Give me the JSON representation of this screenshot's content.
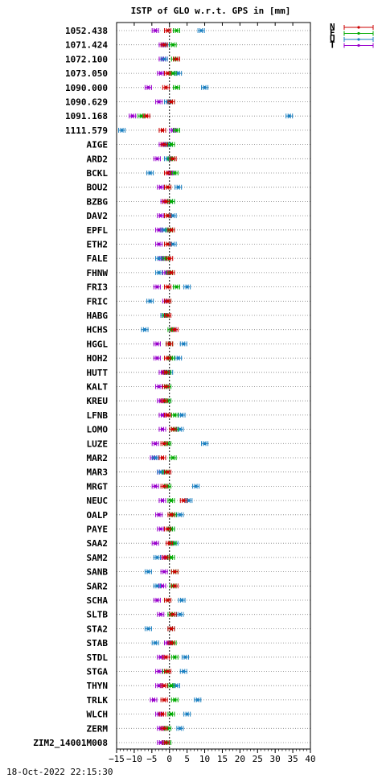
{
  "chart_data": {
    "type": "scatter",
    "title": "ISTP of GLO w.r.t. GPS in [mm]",
    "xlim": [
      -15,
      40
    ],
    "x_ticks": [
      -15,
      -10,
      -5,
      0,
      5,
      10,
      15,
      20,
      25,
      30,
      35,
      40
    ],
    "x_tick_labels": [
      "−15",
      "−10",
      "−5",
      "0",
      "5",
      "10",
      "15",
      "20",
      "25",
      "30",
      "35",
      "40"
    ],
    "grid": true,
    "legend_position": "top-right",
    "series": [
      {
        "name": "N",
        "color": "#cc0000"
      },
      {
        "name": "E",
        "color": "#00aa00"
      },
      {
        "name": "U",
        "color": "#1a7fc0"
      },
      {
        "name": "T",
        "color": "#9900cc"
      }
    ],
    "stations": [
      {
        "label": "1052.438",
        "N": -0.5,
        "E": 2.0,
        "U": 9.0,
        "T": -4.0
      },
      {
        "label": "1071.424",
        "N": -1.5,
        "E": 1.0,
        "U": -1.0,
        "T": -2.0
      },
      {
        "label": "1072.100",
        "N": 2.0,
        "E": 1.5,
        "U": -1.5,
        "T": -2.0
      },
      {
        "label": "1073.050",
        "N": -0.5,
        "E": 1.0,
        "U": 2.5,
        "T": -2.5
      },
      {
        "label": "1090.000",
        "N": -1.0,
        "E": 2.0,
        "U": 10.0,
        "T": -6.0
      },
      {
        "label": "1090.629",
        "N": 0.5,
        "E": 0.5,
        "U": -0.5,
        "T": -3.0
      },
      {
        "label": "1091.168",
        "N": -6.5,
        "E": -8.0,
        "U": 34.0,
        "T": -10.5
      },
      {
        "label": "1111.579",
        "N": -2.0,
        "E": 2.0,
        "U": -13.5,
        "T": 1.0
      },
      {
        "label": "AIGE",
        "N": -1.5,
        "E": 0.5,
        "U": -0.5,
        "T": -2.0
      },
      {
        "label": "ARD2",
        "N": 1.0,
        "E": 0.5,
        "U": -0.5,
        "T": -3.5
      },
      {
        "label": "BCKL",
        "N": -0.5,
        "E": 1.5,
        "U": -5.5,
        "T": 0.5
      },
      {
        "label": "BOU2",
        "N": -0.5,
        "E": -0.5,
        "U": 2.5,
        "T": -2.5
      },
      {
        "label": "BZBG",
        "N": -1.0,
        "E": 0.5,
        "U": 0.5,
        "T": -1.5
      },
      {
        "label": "DAV2",
        "N": -0.5,
        "E": -0.5,
        "U": 1.0,
        "T": -2.5
      },
      {
        "label": "EPFL",
        "N": 0.5,
        "E": 0.0,
        "U": -1.5,
        "T": -3.0
      },
      {
        "label": "ETH2",
        "N": -0.5,
        "E": -0.5,
        "U": 1.0,
        "T": -3.0
      },
      {
        "label": "FALE",
        "N": 0.0,
        "E": -1.0,
        "U": -3.0,
        "T": -2.0
      },
      {
        "label": "FHNW",
        "N": 0.5,
        "E": 0.0,
        "U": -3.0,
        "T": -1.0
      },
      {
        "label": "FRI3",
        "N": -0.5,
        "E": 2.0,
        "U": 5.0,
        "T": -3.5
      },
      {
        "label": "FRIC",
        "N": -0.5,
        "E": -0.5,
        "U": -5.5,
        "T": -1.0
      },
      {
        "label": "HABG",
        "N": -0.5,
        "E": -1.0,
        "U": -1.5,
        "T": -1.5
      },
      {
        "label": "HCHS",
        "N": 1.5,
        "E": 0.5,
        "U": -7.0,
        "T": 1.0
      },
      {
        "label": "HGGL",
        "N": 0.0,
        "E": 0.0,
        "U": 4.0,
        "T": -3.5
      },
      {
        "label": "HOH2",
        "N": -0.5,
        "E": 0.5,
        "U": 2.5,
        "T": -3.5
      },
      {
        "label": "HUTT",
        "N": -1.0,
        "E": -0.5,
        "U": 0.0,
        "T": -2.0
      },
      {
        "label": "KALT",
        "N": -1.0,
        "E": -0.5,
        "U": -0.5,
        "T": -3.0
      },
      {
        "label": "KREU",
        "N": -1.5,
        "E": -0.5,
        "U": -0.5,
        "T": -2.5
      },
      {
        "label": "LFNB",
        "N": -0.5,
        "E": 1.5,
        "U": 3.5,
        "T": -2.0
      },
      {
        "label": "LOMO",
        "N": 1.0,
        "E": 1.5,
        "U": 3.0,
        "T": -2.0
      },
      {
        "label": "LUZE",
        "N": -1.5,
        "E": -0.5,
        "U": 10.0,
        "T": -4.0
      },
      {
        "label": "MAR2",
        "N": -2.0,
        "E": 1.0,
        "U": -4.0,
        "T": -4.5
      },
      {
        "label": "MAR3",
        "N": -0.5,
        "E": -1.0,
        "U": -2.5,
        "T": -2.5
      },
      {
        "label": "MRGT",
        "N": -1.5,
        "E": -0.5,
        "U": 7.5,
        "T": -4.0
      },
      {
        "label": "NEUC",
        "N": 4.0,
        "E": 0.5,
        "U": 5.5,
        "T": -2.0
      },
      {
        "label": "OALP",
        "N": 0.5,
        "E": 1.0,
        "U": 3.0,
        "T": -3.0
      },
      {
        "label": "PAYE",
        "N": -0.5,
        "E": 0.5,
        "U": 0.5,
        "T": -2.5
      },
      {
        "label": "SAA2",
        "N": 0.0,
        "E": 1.0,
        "U": 1.5,
        "T": -4.0
      },
      {
        "label": "SAM2",
        "N": -1.0,
        "E": 0.5,
        "U": -3.5,
        "T": -1.5
      },
      {
        "label": "SANB",
        "N": 1.5,
        "E": 1.5,
        "U": -6.0,
        "T": -1.5
      },
      {
        "label": "SAR2",
        "N": 1.5,
        "E": 1.0,
        "U": -3.5,
        "T": -2.0
      },
      {
        "label": "SCHA",
        "N": -0.5,
        "E": -0.5,
        "U": 3.5,
        "T": -3.5
      },
      {
        "label": "SLTB",
        "N": 1.0,
        "E": 0.5,
        "U": 3.0,
        "T": -2.5
      },
      {
        "label": "STA2",
        "N": 0.5,
        "E": 0.5,
        "U": -6.0,
        "T": 0.5
      },
      {
        "label": "STAB",
        "N": 0.5,
        "E": 1.0,
        "U": -4.0,
        "T": -0.5
      },
      {
        "label": "STDL",
        "N": -1.0,
        "E": 1.5,
        "U": 4.5,
        "T": -2.5
      },
      {
        "label": "STGA",
        "N": -0.5,
        "E": -1.0,
        "U": 4.0,
        "T": -3.0
      },
      {
        "label": "THYN",
        "N": -1.5,
        "E": 0.5,
        "U": 2.0,
        "T": -3.0
      },
      {
        "label": "TRLK",
        "N": -1.5,
        "E": 1.5,
        "U": 8.0,
        "T": -4.5
      },
      {
        "label": "WLCH",
        "N": -2.0,
        "E": 0.5,
        "U": 5.0,
        "T": -3.0
      },
      {
        "label": "ZERM",
        "N": -1.5,
        "E": -0.5,
        "U": 3.0,
        "T": -2.5
      },
      {
        "label": "ZIM2_14001M008",
        "N": -1.0,
        "E": -0.5,
        "U": -1.0,
        "T": -2.5
      }
    ]
  },
  "timestamp": "18-Oct-2022 22:15:30"
}
